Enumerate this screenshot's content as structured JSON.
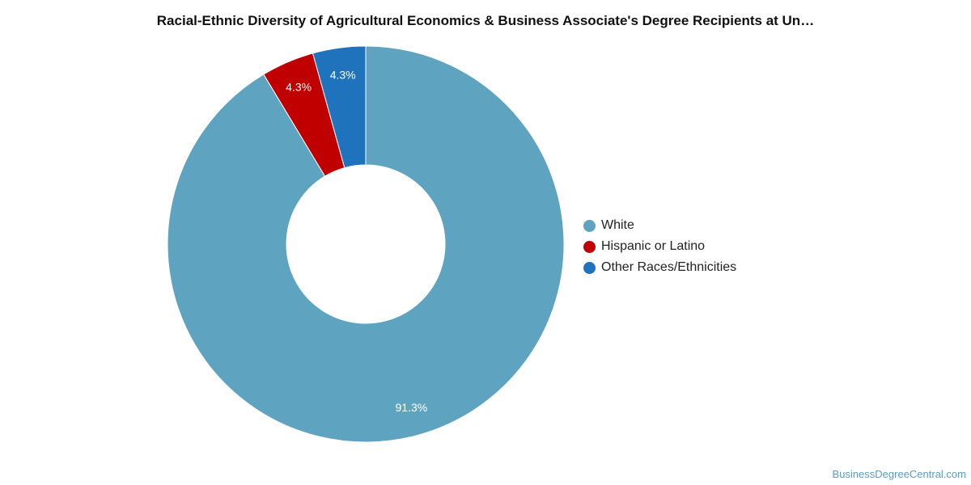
{
  "chart_data": {
    "type": "pie",
    "title": "Racial-Ethnic Diversity of Agricultural Economics & Business Associate's Degree Recipients at Un…",
    "donut": true,
    "legend_position": "right",
    "slices": [
      {
        "name": "White",
        "value": 91.3,
        "label": "91.3%",
        "color": "#5ea3bf"
      },
      {
        "name": "Hispanic or Latino",
        "value": 4.3,
        "label": "4.3%",
        "color": "#c00000"
      },
      {
        "name": "Other Races/Ethnicities",
        "value": 4.3,
        "label": "4.3%",
        "color": "#1f73bd"
      }
    ]
  },
  "credit": "BusinessDegreeCentral.com"
}
